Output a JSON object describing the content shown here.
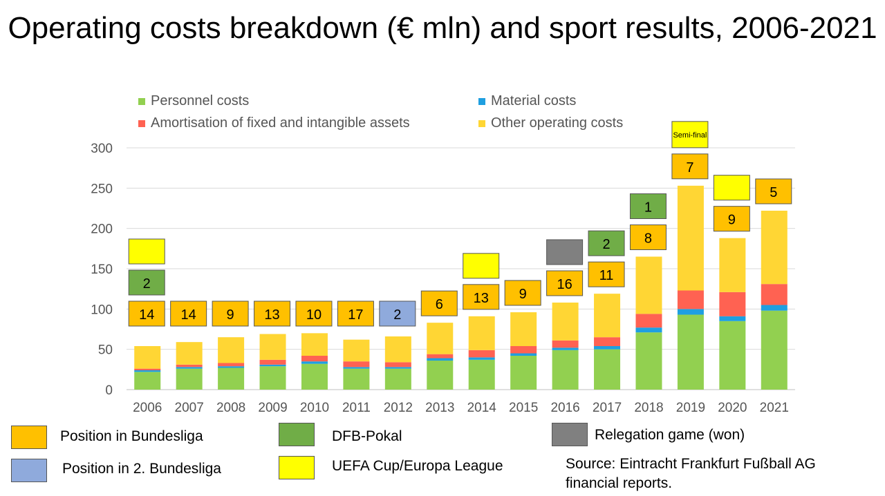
{
  "title": "Operating costs breakdown (€ mln) and sport results, 2006-2021",
  "source": "Source: Eintracht Frankfurt Fußball AG financial reports.",
  "chart_data": {
    "type": "bar",
    "stacked": true,
    "categories": [
      "2006",
      "2007",
      "2008",
      "2009",
      "2010",
      "2011",
      "2012",
      "2013",
      "2014",
      "2015",
      "2016",
      "2017",
      "2018",
      "2019",
      "2020",
      "2021"
    ],
    "ylim": [
      0,
      300
    ],
    "yticks": [
      0,
      50,
      100,
      150,
      200,
      250,
      300
    ],
    "grid": true,
    "legend_position": "top",
    "series": [
      {
        "name": "Personnel costs",
        "color": "#92d050",
        "values": [
          22,
          26,
          27,
          29,
          32,
          26,
          26,
          36,
          37,
          42,
          49,
          50,
          71,
          93,
          85,
          98
        ]
      },
      {
        "name": "Material costs",
        "color": "#1f9fe0",
        "values": [
          2,
          2,
          2,
          2,
          3,
          2,
          2,
          3,
          3,
          3,
          3,
          4,
          6,
          7,
          6,
          7
        ]
      },
      {
        "name": "Amortisation of fixed and intangible assets",
        "color": "#ff6252",
        "values": [
          2,
          3,
          4,
          6,
          7,
          7,
          6,
          5,
          9,
          9,
          9,
          11,
          17,
          23,
          30,
          26
        ]
      },
      {
        "name": "Other operating costs",
        "color": "#ffd634",
        "values": [
          28,
          28,
          32,
          32,
          28,
          27,
          32,
          39,
          42,
          42,
          47,
          54,
          71,
          130,
          67,
          91
        ]
      }
    ],
    "legend_order": [
      0,
      1,
      2,
      3
    ],
    "annotations": [
      [
        {
          "kind": "bundesliga",
          "text": "14"
        },
        {
          "kind": "pokal",
          "text": "2"
        },
        {
          "kind": "uefa",
          "text": ""
        }
      ],
      [
        {
          "kind": "bundesliga",
          "text": "14"
        }
      ],
      [
        {
          "kind": "bundesliga",
          "text": "9"
        }
      ],
      [
        {
          "kind": "bundesliga",
          "text": "13"
        }
      ],
      [
        {
          "kind": "bundesliga",
          "text": "10"
        }
      ],
      [
        {
          "kind": "bundesliga",
          "text": "17"
        }
      ],
      [
        {
          "kind": "bundesliga2",
          "text": "2"
        }
      ],
      [
        {
          "kind": "bundesliga",
          "text": "6"
        }
      ],
      [
        {
          "kind": "bundesliga",
          "text": "13"
        },
        {
          "kind": "uefa",
          "text": ""
        }
      ],
      [
        {
          "kind": "bundesliga",
          "text": "9"
        }
      ],
      [
        {
          "kind": "bundesliga",
          "text": "16"
        },
        {
          "kind": "relegation",
          "text": ""
        }
      ],
      [
        {
          "kind": "bundesliga",
          "text": "11"
        },
        {
          "kind": "pokal",
          "text": "2"
        }
      ],
      [
        {
          "kind": "bundesliga",
          "text": "8"
        },
        {
          "kind": "pokal",
          "text": "1"
        }
      ],
      [
        {
          "kind": "bundesliga",
          "text": "7"
        },
        {
          "kind": "uefa",
          "text": "Semi-final"
        }
      ],
      [
        {
          "kind": "bundesliga",
          "text": "9"
        },
        {
          "kind": "uefa",
          "text": ""
        }
      ],
      [
        {
          "kind": "bundesliga",
          "text": "5"
        }
      ]
    ]
  },
  "key": [
    {
      "kind": "bundesliga",
      "label": "Position in Bundesliga",
      "color": "#ffc000"
    },
    {
      "kind": "pokal",
      "label": "DFB-Pokal",
      "color": "#70ad47"
    },
    {
      "kind": "relegation",
      "label": "Relegation game (won)",
      "color": "#808080"
    },
    {
      "kind": "bundesliga2",
      "label": "Position in 2. Bundesliga",
      "color": "#8faadc"
    },
    {
      "kind": "uefa",
      "label": "UEFA Cup/Europa League",
      "color": "#ffff00"
    }
  ]
}
